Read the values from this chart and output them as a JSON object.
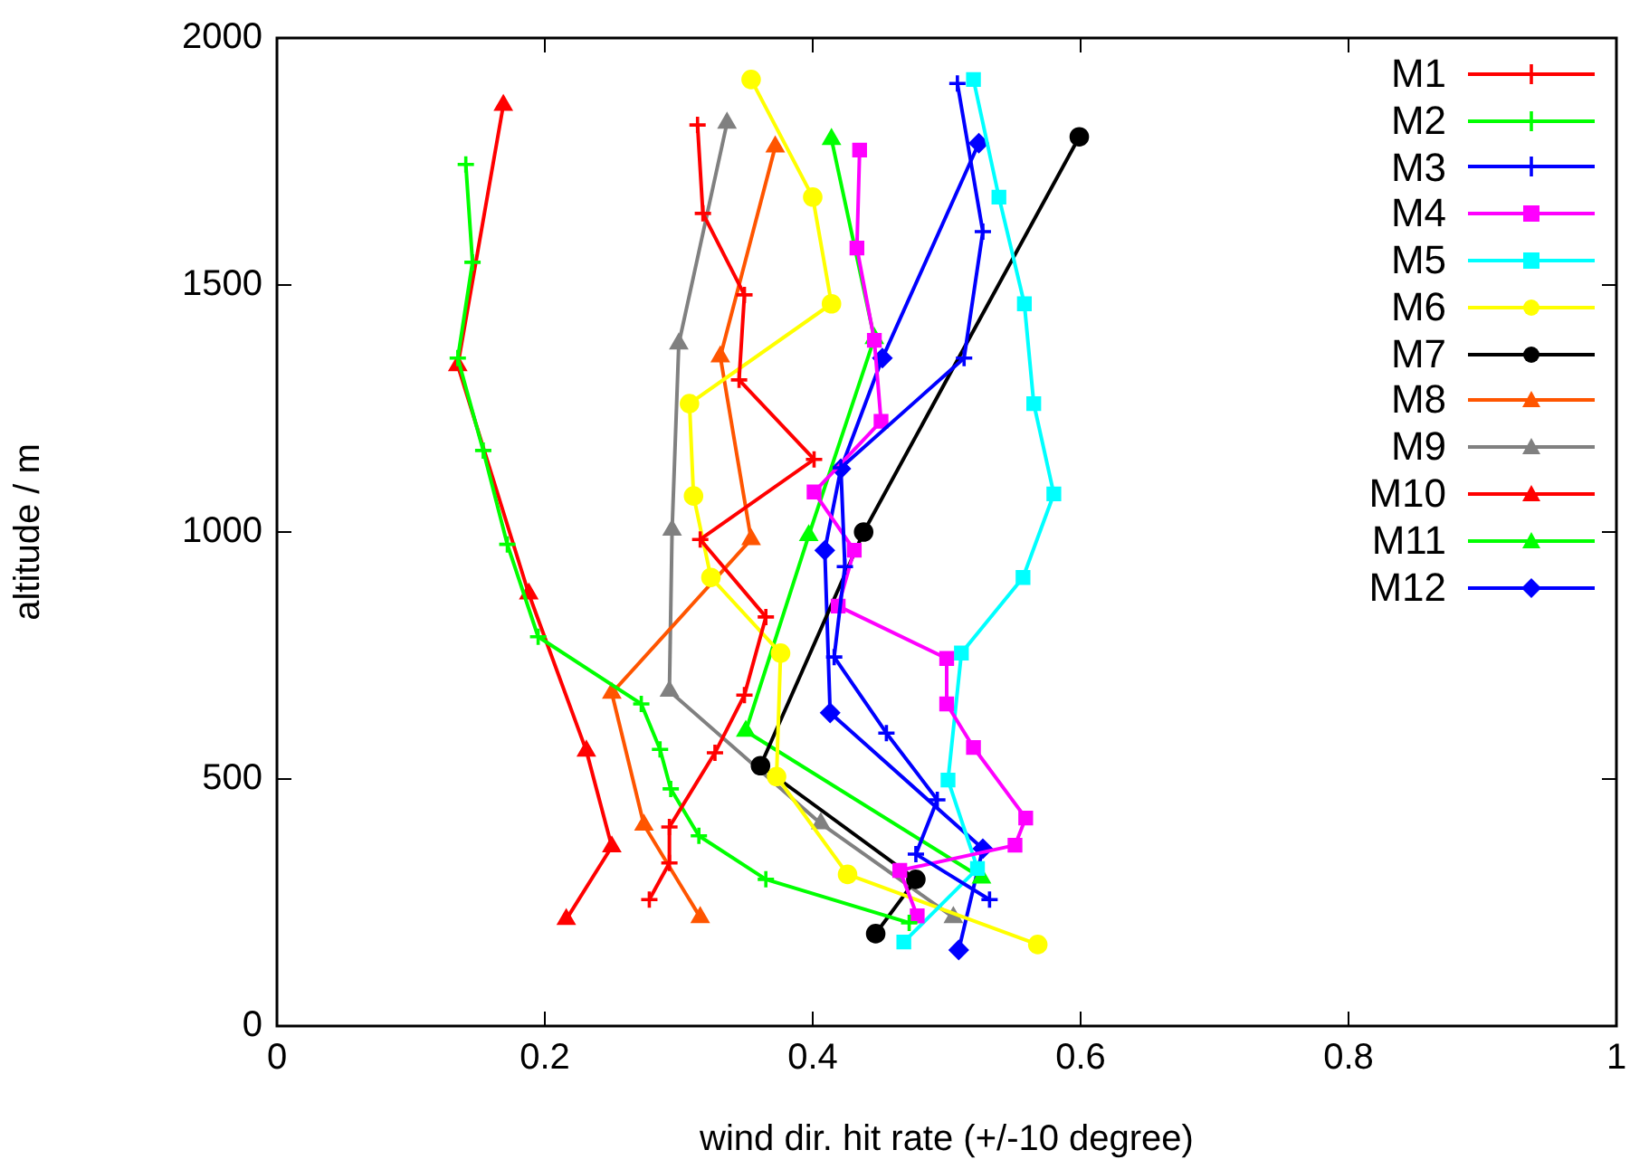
{
  "chart_data": {
    "type": "line",
    "xlabel": "wind dir. hit rate (+/-10 degree)",
    "ylabel": "altitude / m",
    "xlim": [
      0,
      1
    ],
    "xticks": [
      0,
      0.2,
      0.4,
      0.6,
      0.8,
      1
    ],
    "ylim": [
      0,
      2000
    ],
    "yticks": [
      0,
      500,
      1000,
      1500,
      2000
    ],
    "grid": false,
    "legend": "top right",
    "series": [
      {
        "name": "M1",
        "color": "#ff0000",
        "marker": "cross",
        "x": [
          0.314,
          0.318,
          0.349,
          0.345,
          0.401,
          0.316,
          0.365,
          0.349,
          0.327,
          0.293,
          0.293,
          0.278
        ],
        "values": [
          1824,
          1645,
          1480,
          1308,
          1147,
          985,
          828,
          670,
          553,
          403,
          330,
          256
        ]
      },
      {
        "name": "M2",
        "color": "#00ff00",
        "marker": "cross",
        "x": [
          0.141,
          0.146,
          0.135,
          0.154,
          0.172,
          0.195,
          0.272,
          0.286,
          0.294,
          0.315,
          0.365,
          0.472
        ],
        "values": [
          1744,
          1546,
          1352,
          1165,
          975,
          788,
          652,
          560,
          480,
          385,
          297,
          209
        ]
      },
      {
        "name": "M3",
        "color": "#0000ff",
        "marker": "cross",
        "x": [
          0.508,
          0.527,
          0.513,
          0.421,
          0.424,
          0.416,
          0.455,
          0.493,
          0.477,
          0.532
        ],
        "values": [
          1908,
          1608,
          1352,
          1130,
          930,
          747,
          593,
          458,
          348,
          256
        ]
      },
      {
        "name": "M4",
        "color": "#ff00ff",
        "marker": "square",
        "x": [
          0.435,
          0.433,
          0.446,
          0.451,
          0.401,
          0.431,
          0.419,
          0.5,
          0.5,
          0.52,
          0.559,
          0.551,
          0.465,
          0.478
        ],
        "values": [
          1773,
          1575,
          1388,
          1224,
          1081,
          963,
          850,
          744,
          652,
          564,
          421,
          366,
          315,
          223
        ]
      },
      {
        "name": "M5",
        "color": "#00ffff",
        "marker": "square",
        "x": [
          0.52,
          0.539,
          0.558,
          0.565,
          0.58,
          0.557,
          0.511,
          0.501,
          0.523,
          0.468
        ],
        "values": [
          1916,
          1678,
          1462,
          1260,
          1077,
          908,
          755,
          498,
          319,
          170
        ]
      },
      {
        "name": "M6",
        "color": "#ffff00",
        "marker": "circle",
        "x": [
          0.354,
          0.4,
          0.414,
          0.308,
          0.311,
          0.324,
          0.376,
          0.373,
          0.426,
          0.568
        ],
        "values": [
          1916,
          1678,
          1462,
          1260,
          1073,
          908,
          755,
          505,
          307,
          165
        ]
      },
      {
        "name": "M7",
        "color": "#000000",
        "marker": "circle",
        "x": [
          0.599,
          0.438,
          0.361,
          0.477,
          0.447
        ],
        "values": [
          1800,
          1000,
          527,
          297,
          187
        ]
      },
      {
        "name": "M8",
        "color": "#ff5500",
        "marker": "triangle",
        "x": [
          0.372,
          0.331,
          0.354,
          0.25,
          0.274,
          0.316
        ],
        "values": [
          1780,
          1355,
          985,
          674,
          407,
          220
        ]
      },
      {
        "name": "M9",
        "color": "#808080",
        "marker": "triangle",
        "x": [
          0.336,
          0.3,
          0.295,
          0.293,
          0.406,
          0.505
        ],
        "values": [
          1828,
          1381,
          1004,
          678,
          410,
          220
        ]
      },
      {
        "name": "M10",
        "color": "#ff0000",
        "marker": "triangle",
        "x": [
          0.169,
          0.135,
          0.188,
          0.231,
          0.25,
          0.216
        ],
        "values": [
          1864,
          1337,
          875,
          557,
          363,
          216
        ]
      },
      {
        "name": "M11",
        "color": "#00ff00",
        "marker": "triangle",
        "x": [
          0.414,
          0.446,
          0.397,
          0.35,
          0.526
        ],
        "values": [
          1795,
          1392,
          993,
          597,
          300
        ]
      },
      {
        "name": "M12",
        "color": "#0000ff",
        "marker": "diamond",
        "x": [
          0.524,
          0.452,
          0.421,
          0.409,
          0.413,
          0.527,
          0.509
        ],
        "values": [
          1787,
          1352,
          1128,
          963,
          634,
          359,
          154
        ]
      }
    ]
  }
}
